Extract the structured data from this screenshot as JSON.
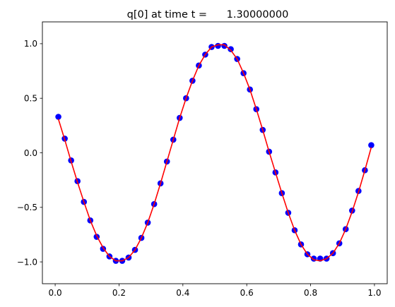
{
  "chart_data": {
    "type": "line",
    "title": "q[0] at time t =      1.30000000",
    "xlabel": "",
    "ylabel": "",
    "xlim": [
      -0.04,
      1.04
    ],
    "ylim": [
      -1.2,
      1.2
    ],
    "xticks": [
      0.0,
      0.2,
      0.4,
      0.6,
      0.8,
      1.0
    ],
    "xtick_labels": [
      "0.0",
      "0.2",
      "0.4",
      "0.6",
      "0.8",
      "1.0"
    ],
    "yticks": [
      -1.0,
      -0.5,
      0.0,
      0.5,
      1.0
    ],
    "ytick_labels": [
      "−1.0",
      "−0.5",
      "0.0",
      "0.5",
      "1.0"
    ],
    "grid": false,
    "series": [
      {
        "style": "markers",
        "color": "#0000ff",
        "marker": "circle",
        "x": [
          0.01,
          0.03,
          0.05,
          0.07,
          0.09,
          0.11,
          0.13,
          0.15,
          0.17,
          0.19,
          0.21,
          0.23,
          0.25,
          0.27,
          0.29,
          0.31,
          0.33,
          0.35,
          0.37,
          0.39,
          0.41,
          0.43,
          0.45,
          0.47,
          0.49,
          0.51,
          0.53,
          0.55,
          0.57,
          0.59,
          0.61,
          0.63,
          0.65,
          0.67,
          0.69,
          0.71,
          0.73,
          0.75,
          0.77,
          0.79,
          0.81,
          0.83,
          0.85,
          0.87,
          0.89,
          0.91,
          0.93,
          0.95,
          0.97,
          0.99
        ],
        "y": [
          0.33,
          0.13,
          -0.07,
          -0.26,
          -0.45,
          -0.62,
          -0.77,
          -0.88,
          -0.95,
          -0.99,
          -0.99,
          -0.96,
          -0.89,
          -0.78,
          -0.64,
          -0.47,
          -0.28,
          -0.08,
          0.12,
          0.32,
          0.5,
          0.66,
          0.8,
          0.9,
          0.97,
          0.98,
          0.98,
          0.95,
          0.86,
          0.73,
          0.58,
          0.4,
          0.21,
          0.01,
          -0.18,
          -0.37,
          -0.55,
          -0.71,
          -0.84,
          -0.93,
          -0.97,
          -0.97,
          -0.97,
          -0.92,
          -0.83,
          -0.7,
          -0.53,
          -0.35,
          -0.16,
          0.07
        ]
      },
      {
        "style": "line",
        "color": "#ff0000",
        "x": [
          0.01,
          0.03,
          0.05,
          0.07,
          0.09,
          0.11,
          0.13,
          0.15,
          0.17,
          0.19,
          0.21,
          0.23,
          0.25,
          0.27,
          0.29,
          0.31,
          0.33,
          0.35,
          0.37,
          0.39,
          0.41,
          0.43,
          0.45,
          0.47,
          0.49,
          0.51,
          0.53,
          0.55,
          0.57,
          0.59,
          0.61,
          0.63,
          0.65,
          0.67,
          0.69,
          0.71,
          0.73,
          0.75,
          0.77,
          0.79,
          0.81,
          0.83,
          0.85,
          0.87,
          0.89,
          0.91,
          0.93,
          0.95,
          0.97,
          0.99
        ],
        "y": [
          0.31,
          0.12,
          -0.08,
          -0.27,
          -0.45,
          -0.62,
          -0.76,
          -0.87,
          -0.95,
          -0.99,
          -0.99,
          -0.96,
          -0.89,
          -0.78,
          -0.64,
          -0.47,
          -0.28,
          -0.08,
          0.12,
          0.32,
          0.5,
          0.66,
          0.8,
          0.9,
          0.97,
          0.99,
          0.99,
          0.94,
          0.86,
          0.73,
          0.58,
          0.4,
          0.21,
          0.01,
          -0.18,
          -0.37,
          -0.55,
          -0.71,
          -0.84,
          -0.93,
          -0.98,
          -0.99,
          -0.97,
          -0.92,
          -0.83,
          -0.7,
          -0.54,
          -0.36,
          -0.16,
          0.05
        ]
      }
    ]
  }
}
